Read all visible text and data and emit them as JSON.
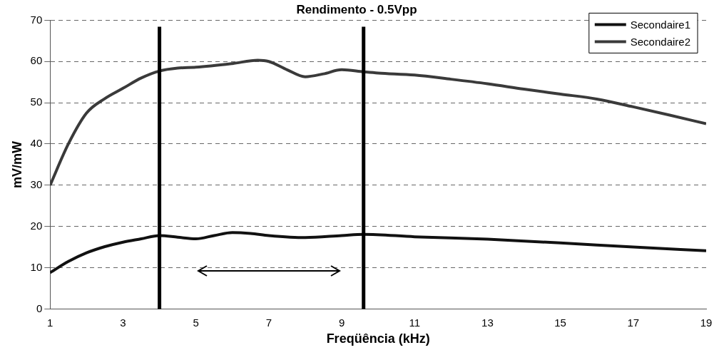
{
  "chart_data": {
    "type": "line",
    "title": "Rendimento - 0.5Vpp",
    "xlabel": "Freqüência (kHz)",
    "ylabel": "mV/mW",
    "xlim": [
      1,
      19
    ],
    "xticks": [
      1,
      3,
      5,
      7,
      9,
      11,
      13,
      15,
      17,
      19
    ],
    "ylim": [
      0,
      70
    ],
    "yticks": [
      0,
      10,
      20,
      30,
      40,
      50,
      60,
      70
    ],
    "grid": "y",
    "legend": "top right",
    "marker": "none",
    "line_style": "solid",
    "series": [
      {
        "name": "Secondaire1",
        "color": "#111111",
        "x": [
          1,
          1.5,
          2,
          2.5,
          3,
          3.5,
          4,
          4.5,
          5,
          5.5,
          6,
          6.5,
          7,
          8,
          9,
          9.6,
          11,
          13,
          15,
          17,
          19
        ],
        "values": [
          8.8,
          11.5,
          13.6,
          15.1,
          16.2,
          17,
          17.8,
          17.4,
          17,
          17.8,
          18.5,
          18.3,
          17.8,
          17.3,
          17.8,
          18.1,
          17.5,
          16.9,
          16,
          15,
          14.1
        ]
      },
      {
        "name": "Secondaire2",
        "color": "#3a3a3a",
        "x": [
          1,
          1.5,
          2,
          2.5,
          3,
          3.5,
          4,
          4.5,
          5,
          6,
          6.7,
          7,
          7.5,
          8,
          8.5,
          9,
          9.6,
          10,
          11,
          12,
          13,
          14,
          15,
          16,
          17,
          18,
          19
        ],
        "values": [
          30,
          40,
          47.5,
          51,
          53.5,
          56,
          57.7,
          58.4,
          58.6,
          59.5,
          60.3,
          60,
          58,
          56.3,
          57,
          58,
          57.5,
          57.2,
          56.7,
          55.7,
          54.6,
          53.3,
          52.1,
          50.9,
          49,
          47,
          44.9
        ]
      }
    ],
    "ref_lines": [
      {
        "axis": "x",
        "value": 4,
        "color": "#000000"
      },
      {
        "axis": "x",
        "value": 9.6,
        "color": "#000000"
      }
    ]
  }
}
